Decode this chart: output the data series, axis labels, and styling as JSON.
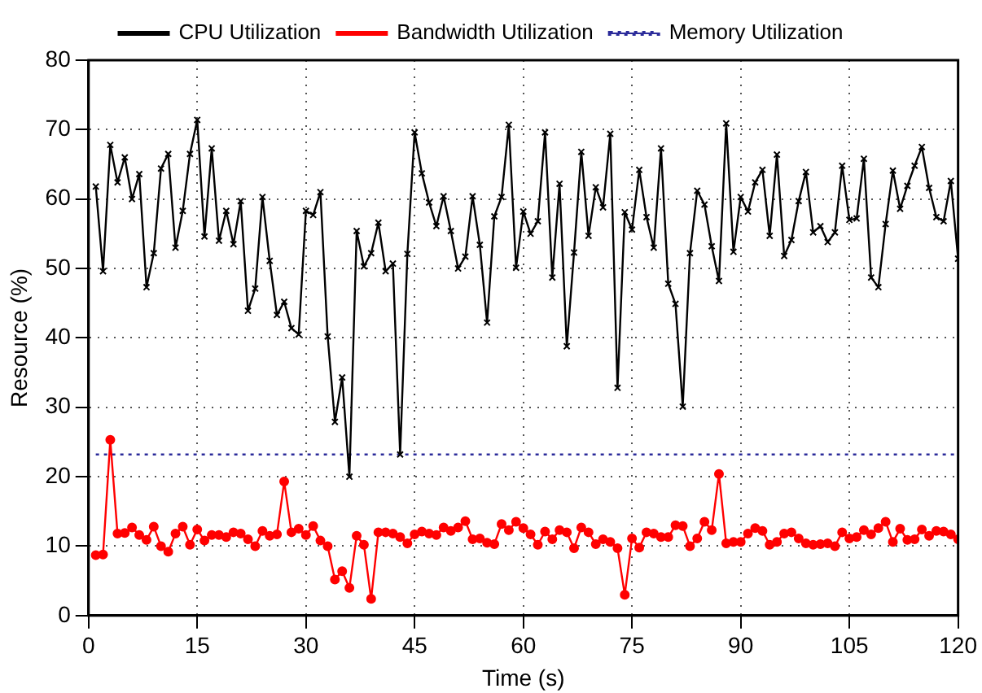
{
  "chart_data": {
    "type": "line",
    "xlabel": "Time (s)",
    "ylabel": "Resource (%)",
    "x": [
      1,
      2,
      3,
      4,
      5,
      6,
      7,
      8,
      9,
      10,
      11,
      12,
      13,
      14,
      15,
      16,
      17,
      18,
      19,
      20,
      21,
      22,
      23,
      24,
      25,
      26,
      27,
      28,
      29,
      30,
      31,
      32,
      33,
      34,
      35,
      36,
      37,
      38,
      39,
      40,
      41,
      42,
      43,
      44,
      45,
      46,
      47,
      48,
      49,
      50,
      51,
      52,
      53,
      54,
      55,
      56,
      57,
      58,
      59,
      60,
      61,
      62,
      63,
      64,
      65,
      66,
      67,
      68,
      69,
      70,
      71,
      72,
      73,
      74,
      75,
      76,
      77,
      78,
      79,
      80,
      81,
      82,
      83,
      84,
      85,
      86,
      87,
      88,
      89,
      90,
      91,
      92,
      93,
      94,
      95,
      96,
      97,
      98,
      99,
      100,
      101,
      102,
      103,
      104,
      105,
      106,
      107,
      108,
      109,
      110,
      111,
      112,
      113,
      114,
      115,
      116,
      117,
      118,
      119,
      120
    ],
    "xlim": [
      0,
      120
    ],
    "xticks": [
      0,
      15,
      30,
      45,
      60,
      75,
      90,
      105,
      120
    ],
    "ylim": [
      0,
      80
    ],
    "yticks": [
      0,
      10,
      20,
      30,
      40,
      50,
      60,
      70,
      80
    ],
    "grid": true,
    "legend": "top",
    "series": [
      {
        "name": "CPU Utilization",
        "color": "#000000",
        "marker": "cross",
        "line_style": "solid",
        "values": [
          61.8,
          49.6,
          67.8,
          62.4,
          66.0,
          60.0,
          63.6,
          47.3,
          52.2,
          64.4,
          66.5,
          53.0,
          58.3,
          66.5,
          71.4,
          54.6,
          67.3,
          54.0,
          58.3,
          53.5,
          59.7,
          43.9,
          47.1,
          60.3,
          51.1,
          43.3,
          45.2,
          41.4,
          40.5,
          58.3,
          57.7,
          61.0,
          40.2,
          27.9,
          34.3,
          20.0,
          55.4,
          50.3,
          52.2,
          56.6,
          49.6,
          50.7,
          23.2,
          52.1,
          69.6,
          63.7,
          59.5,
          56.1,
          60.4,
          55.4,
          50.0,
          51.7,
          60.4,
          53.4,
          42.2,
          57.5,
          60.3,
          70.7,
          50.1,
          58.2,
          55.0,
          56.8,
          69.6,
          48.7,
          62.2,
          38.8,
          52.3,
          66.8,
          54.7,
          61.7,
          58.8,
          69.4,
          32.8,
          58.1,
          55.6,
          64.2,
          57.4,
          53.0,
          67.3,
          47.8,
          44.9,
          30.1,
          52.2,
          61.2,
          59.2,
          53.2,
          48.2,
          70.9,
          52.4,
          60.3,
          58.2,
          62.4,
          64.2,
          54.7,
          66.4,
          51.8,
          54.1,
          59.7,
          63.9,
          55.2,
          56.1,
          53.8,
          55.2,
          64.8,
          57.0,
          57.2,
          65.8,
          48.7,
          47.3,
          56.4,
          64.1,
          58.6,
          61.9,
          64.8,
          67.5,
          61.6,
          57.4,
          56.8,
          62.6,
          51.4
        ]
      },
      {
        "name": "Bandwidth Utilization",
        "color": "#ff0000",
        "marker": "circle",
        "line_style": "solid",
        "values": [
          8.7,
          8.8,
          25.3,
          11.8,
          11.9,
          12.7,
          11.6,
          10.9,
          12.8,
          10.0,
          9.2,
          11.8,
          12.8,
          10.2,
          12.4,
          10.8,
          11.6,
          11.6,
          11.3,
          12.0,
          11.8,
          11.0,
          10.0,
          12.2,
          11.5,
          11.7,
          19.3,
          12.0,
          12.5,
          11.6,
          12.9,
          10.8,
          10.0,
          5.2,
          6.4,
          4.0,
          11.5,
          10.2,
          2.4,
          12.0,
          12.0,
          11.8,
          11.3,
          10.4,
          11.7,
          12.1,
          11.8,
          11.6,
          12.7,
          12.2,
          12.7,
          13.6,
          11.0,
          11.1,
          10.5,
          10.3,
          13.2,
          12.3,
          13.5,
          12.6,
          11.7,
          10.2,
          12.1,
          11.0,
          12.3,
          12.0,
          9.7,
          12.7,
          12.0,
          10.3,
          11.0,
          10.6,
          9.7,
          3.0,
          11.1,
          9.8,
          12.0,
          11.8,
          11.3,
          11.3,
          13.0,
          12.9,
          10.0,
          11.1,
          13.5,
          12.3,
          20.4,
          10.4,
          10.6,
          10.6,
          11.8,
          12.6,
          12.2,
          10.2,
          10.6,
          11.8,
          12.0,
          11.1,
          10.4,
          10.2,
          10.3,
          10.4,
          10.0,
          12.0,
          11.1,
          11.3,
          12.3,
          11.7,
          12.6,
          13.5,
          10.6,
          12.5,
          10.9,
          11.0,
          12.4,
          11.5,
          12.2,
          12.1,
          11.7,
          11.0
        ]
      },
      {
        "name": "Memory Utilization",
        "color": "#2b2b9a",
        "marker": "none",
        "line_style": "dotted",
        "x": [
          1,
          120
        ],
        "values": [
          23.2,
          23.2
        ]
      }
    ]
  }
}
